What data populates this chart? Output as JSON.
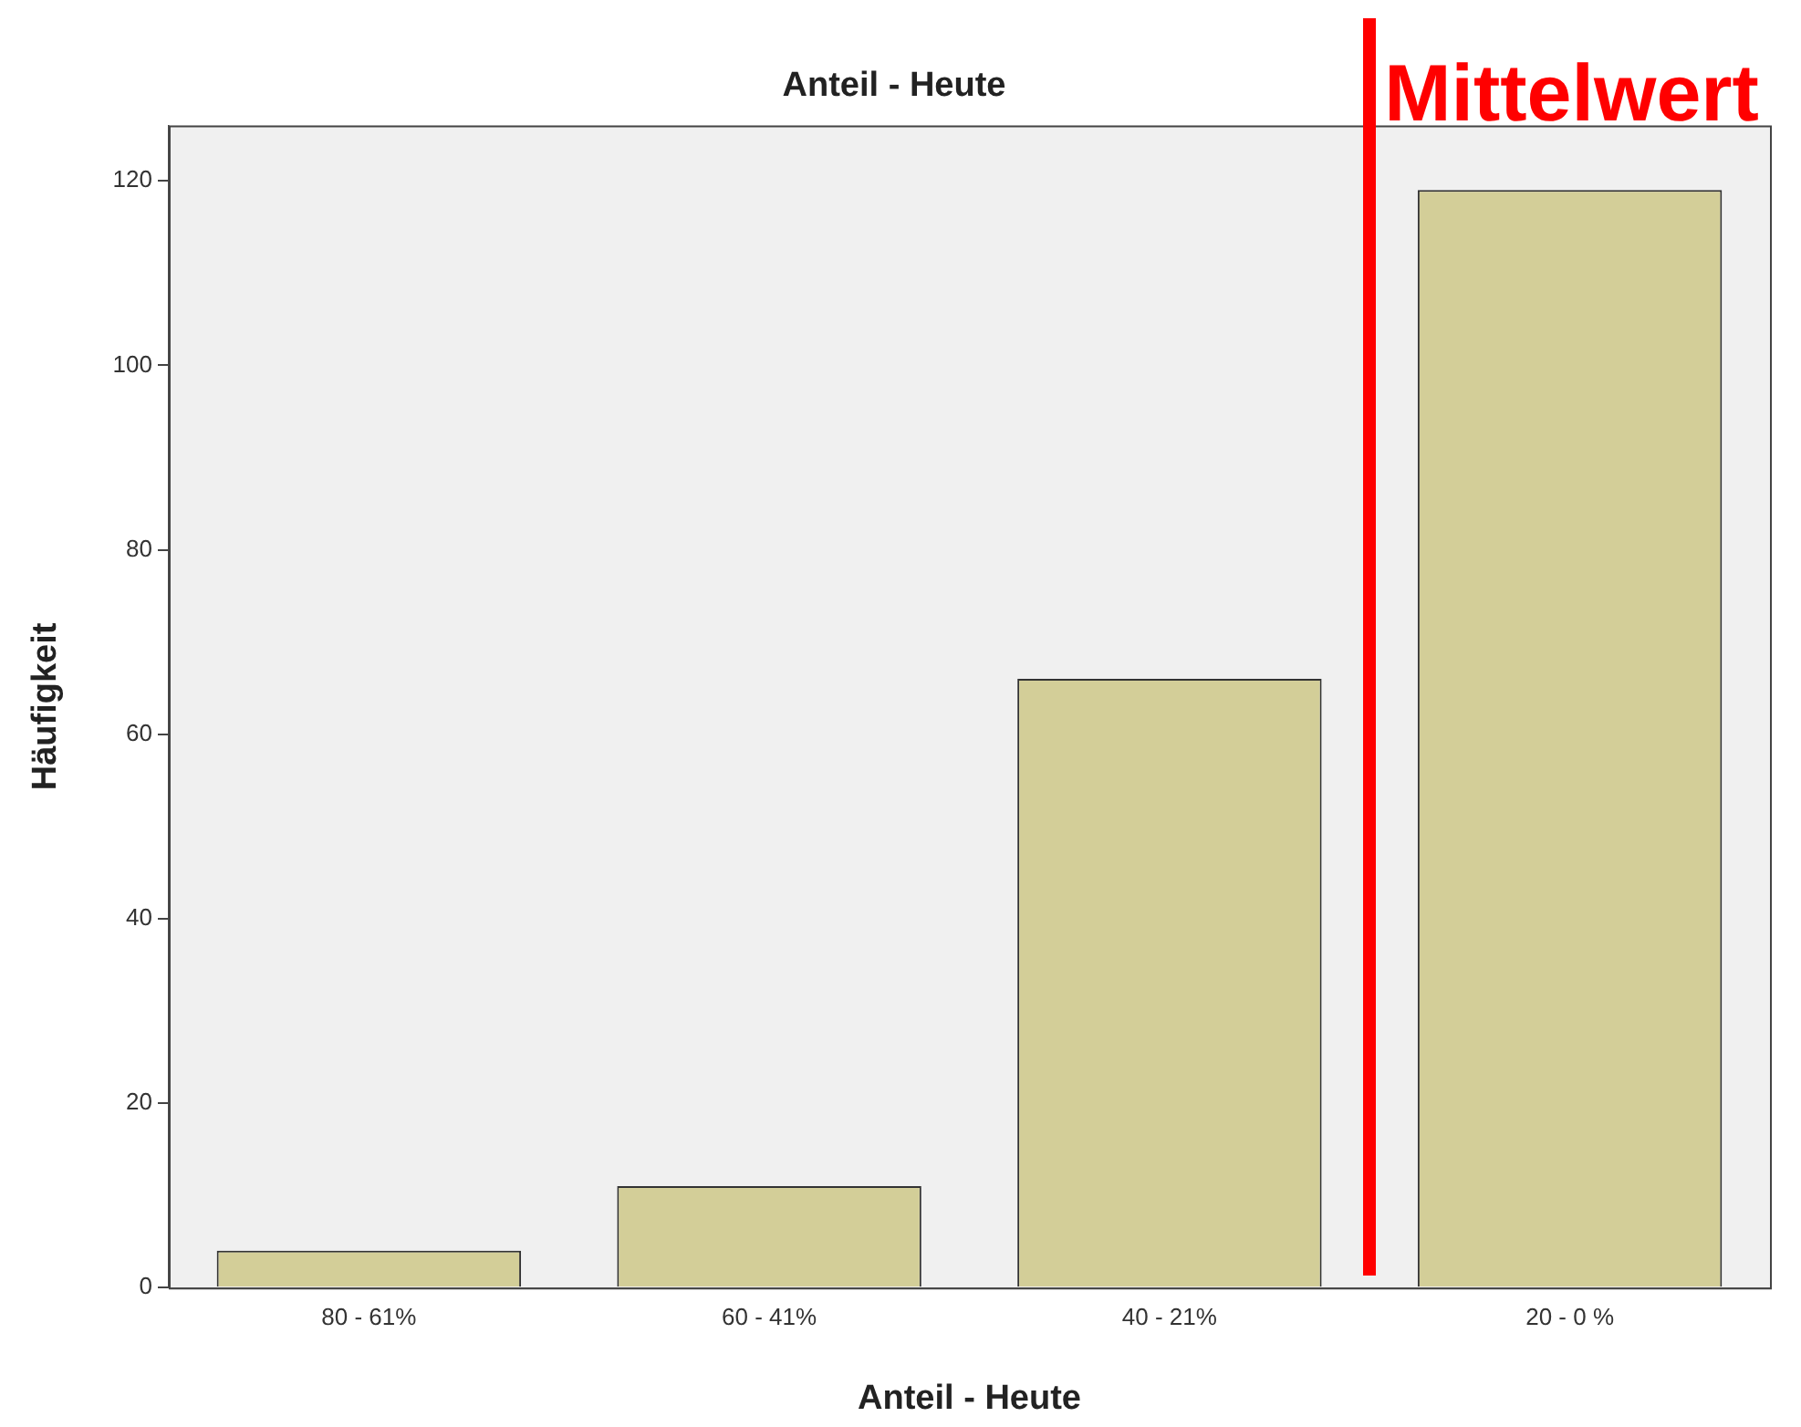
{
  "chart_data": {
    "type": "bar",
    "title": "Anteil - Heute",
    "xlabel": "Anteil - Heute",
    "ylabel": "Häufigkeit",
    "categories": [
      "80 - 61%",
      "60 - 41%",
      "40 - 21%",
      "20 - 0 %"
    ],
    "values": [
      4,
      11,
      66,
      119
    ],
    "color": "#d3ce98",
    "ylim": [
      0,
      126
    ],
    "yticks": [
      0,
      20,
      40,
      60,
      80,
      100,
      120
    ],
    "grid": false,
    "legend": false,
    "annotations": [
      "Mittelwert"
    ]
  }
}
